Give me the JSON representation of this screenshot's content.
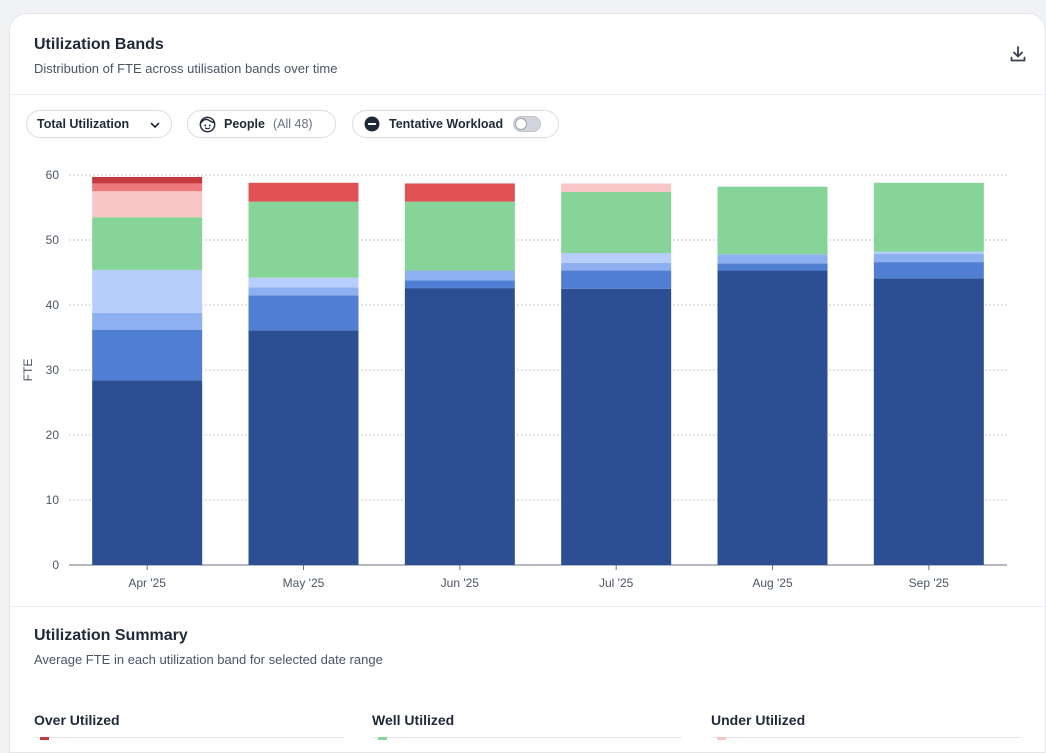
{
  "header": {
    "title": "Utilization Bands",
    "subtitle": "Distribution of FTE across utilisation bands over time"
  },
  "controls": {
    "metric_select": "Total Utilization",
    "people_label": "People",
    "people_count": "(All 48)",
    "tentative_label": "Tentative Workload",
    "tentative_on": false
  },
  "icons": {
    "download": "download-icon",
    "chevron": "chevron-down-icon",
    "people": "face-icon",
    "tentative": "minus-circle-icon"
  },
  "chart_data": {
    "type": "bar",
    "stacked": true,
    "categories": [
      "Apr '25",
      "May '25",
      "Jun '25",
      "Jul '25",
      "Aug '25",
      "Sep '25"
    ],
    "ylabel": "FTE",
    "ylim": [
      0,
      60
    ],
    "yticks": [
      0,
      10,
      20,
      30,
      40,
      50,
      60
    ],
    "grid": true,
    "series": [
      {
        "color": "#2c4f94",
        "values": [
          28.4,
          36.1,
          42.6,
          42.5,
          45.3,
          44.1
        ]
      },
      {
        "color": "#4f7ed3",
        "values": [
          7.8,
          5.4,
          1.2,
          2.8,
          1.1,
          2.5
        ]
      },
      {
        "color": "#8eaff0",
        "values": [
          2.6,
          1.2,
          1.5,
          1.2,
          1.4,
          1.3
        ]
      },
      {
        "color": "#b7cdfb",
        "values": [
          6.6,
          1.5,
          0.0,
          1.5,
          0.0,
          0.3
        ]
      },
      {
        "color": "#86d498",
        "values": [
          8.1,
          11.7,
          10.6,
          9.4,
          10.4,
          10.6
        ]
      },
      {
        "color": "#f7c6c7",
        "values": [
          4.0,
          0.0,
          0.0,
          1.3,
          0.0,
          0.0
        ]
      },
      {
        "color": "#ee7a7d",
        "values": [
          1.2,
          0.0,
          0.0,
          0.0,
          0.0,
          0.0
        ]
      },
      {
        "color": "#e05256",
        "values": [
          0.0,
          2.9,
          2.8,
          0.0,
          0.0,
          0.0
        ]
      },
      {
        "color": "#c43a3e",
        "values": [
          1.0,
          0.0,
          0.0,
          0.0,
          0.0,
          0.0
        ]
      }
    ]
  },
  "summary": {
    "title": "Utilization Summary",
    "subtitle": "Average FTE in each utilization band for selected date range",
    "columns": [
      {
        "title": "Over Utilized",
        "color": "#c43a3e"
      },
      {
        "title": "Well Utilized",
        "color": "#86d498"
      },
      {
        "title": "Under Utilized",
        "color": "#f7c6c7"
      }
    ]
  }
}
